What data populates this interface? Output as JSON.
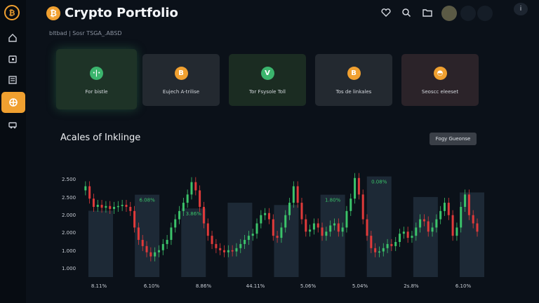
{
  "sidebar": {
    "logo_icon": "bitcoin-logo-icon",
    "items": [
      {
        "icon": "home-icon"
      },
      {
        "icon": "wallet-icon"
      },
      {
        "icon": "document-icon"
      },
      {
        "icon": "portfolio-grid-icon",
        "active": true
      },
      {
        "icon": "exchange-icon"
      }
    ]
  },
  "header": {
    "title": "Crypto Portfolio",
    "subtitle": "bltbad | Sosr TSGA_.ABSD",
    "icons": [
      "heart-icon",
      "search-icon",
      "folder-icon"
    ],
    "account_label": "i"
  },
  "cards": [
    {
      "label": "For bistle",
      "icon_glyph": "·|·",
      "icon_color": "#3bb56d"
    },
    {
      "label": "Eujech A-trilise",
      "icon_glyph": "B",
      "icon_color": "#f0a030"
    },
    {
      "label": "Tor Fsysole Toll",
      "icon_glyph": "V",
      "icon_color": "#3bb56d"
    },
    {
      "label": "Tos de linkales",
      "icon_glyph": "B",
      "icon_color": "#f0a030"
    },
    {
      "label": "Seoscc eleeset",
      "icon_glyph": "◓",
      "icon_color": "#f0a030"
    }
  ],
  "chart_section": {
    "title": "Acales of Inklinge",
    "filter_button": "Fogy Gueonse"
  },
  "chart_data": {
    "type": "candlestick",
    "y_tick_labels": [
      "2.500",
      "2.500",
      "2.000",
      "2.000",
      "1.000",
      "1.000"
    ],
    "x_tick_labels": [
      "8.11%",
      "6.10%",
      "8.86%",
      "44.11%",
      "5.06%",
      "5.04%",
      "2s.8%",
      "6.10%"
    ],
    "highlight_labels": [
      "6.08%",
      "3.86%",
      "1.80%",
      "0.08%"
    ],
    "highlight_bar_heights": [
      0.58,
      0.72,
      0.6,
      0.65,
      0.63,
      0.72,
      0.88,
      0.7,
      0.74
    ],
    "price_series": [
      2.1,
      2.2,
      1.9,
      1.7,
      1.75,
      1.68,
      1.72,
      1.65,
      1.7,
      1.72,
      1.75,
      1.7,
      1.6,
      1.2,
      0.9,
      0.75,
      0.6,
      0.5,
      0.6,
      0.65,
      0.8,
      0.9,
      1.2,
      1.4,
      1.6,
      1.8,
      2.0,
      2.3,
      2.1,
      1.7,
      1.3,
      1.0,
      0.8,
      0.7,
      0.65,
      0.6,
      0.65,
      0.62,
      0.7,
      0.8,
      0.9,
      1.0,
      1.05,
      1.3,
      1.5,
      1.55,
      1.4,
      1.0,
      0.95,
      1.2,
      1.5,
      1.8,
      2.2,
      1.8,
      1.4,
      1.1,
      1.15,
      1.3,
      1.2,
      1.0,
      1.1,
      1.25,
      1.3,
      1.1,
      1.2,
      1.6,
      1.9,
      2.4,
      2.0,
      1.4,
      1.0,
      0.7,
      0.6,
      0.62,
      0.7,
      0.8,
      0.75,
      0.85,
      1.05,
      1.1,
      0.95,
      1.0,
      1.2,
      1.4,
      1.35,
      1.1,
      1.2,
      1.4,
      1.6,
      1.8,
      1.5,
      1.0,
      1.2,
      1.7,
      2.0,
      1.5,
      1.3,
      1.1
    ],
    "colors": {
      "up": "#3bc36a",
      "down": "#e03a3a",
      "highlight": "#2e3e4e"
    }
  }
}
